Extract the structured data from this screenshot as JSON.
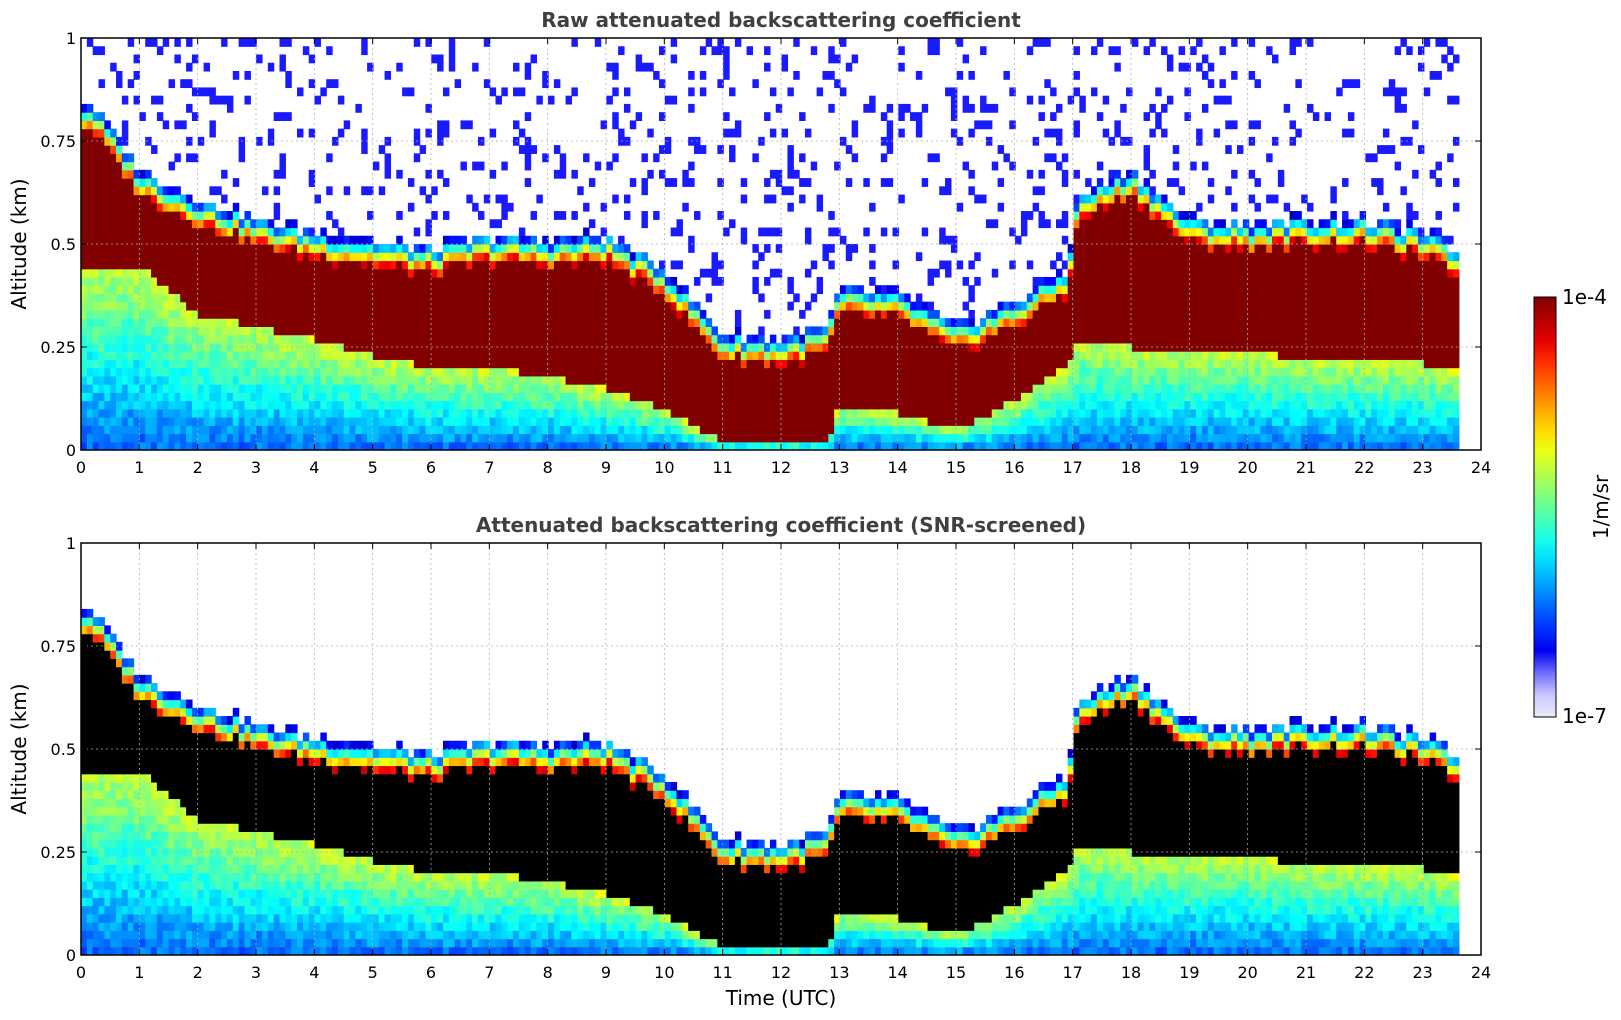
{
  "chart_data": [
    {
      "type": "heatmap",
      "title": "Raw attenuated backscattering coefficient",
      "xlabel": "",
      "ylabel": "Altitude (km)",
      "xlim": [
        0,
        24
      ],
      "ylim": [
        0,
        1
      ],
      "xticks": [
        "0",
        "1",
        "2",
        "3",
        "4",
        "5",
        "6",
        "7",
        "8",
        "9",
        "10",
        "11",
        "12",
        "13",
        "14",
        "15",
        "16",
        "17",
        "18",
        "19",
        "20",
        "21",
        "22",
        "23",
        "24"
      ],
      "yticks": [
        "0",
        "0.25",
        "0.5",
        "0.75",
        "1"
      ],
      "grid": true,
      "colorscale": "jet",
      "layer_top_km": [
        {
          "t": 0.2,
          "h": 0.78
        },
        {
          "t": 1,
          "h": 0.62
        },
        {
          "t": 2,
          "h": 0.55
        },
        {
          "t": 3,
          "h": 0.5
        },
        {
          "t": 4,
          "h": 0.47
        },
        {
          "t": 5,
          "h": 0.45
        },
        {
          "t": 6,
          "h": 0.43
        },
        {
          "t": 7,
          "h": 0.46
        },
        {
          "t": 8,
          "h": 0.45
        },
        {
          "t": 9,
          "h": 0.46
        },
        {
          "t": 10,
          "h": 0.38
        },
        {
          "t": 11,
          "h": 0.22
        },
        {
          "t": 12,
          "h": 0.21
        },
        {
          "t": 12.8,
          "h": 0.24
        },
        {
          "t": 13,
          "h": 0.33
        },
        {
          "t": 14,
          "h": 0.32
        },
        {
          "t": 15,
          "h": 0.24
        },
        {
          "t": 16,
          "h": 0.3
        },
        {
          "t": 16.9,
          "h": 0.38
        },
        {
          "t": 17.1,
          "h": 0.56
        },
        {
          "t": 18,
          "h": 0.62
        },
        {
          "t": 19,
          "h": 0.5
        },
        {
          "t": 20,
          "h": 0.49
        },
        {
          "t": 21,
          "h": 0.5
        },
        {
          "t": 22,
          "h": 0.5
        },
        {
          "t": 23,
          "h": 0.47
        },
        {
          "t": 23.6,
          "h": 0.43
        }
      ],
      "layer_base_km": [
        {
          "t": 0.2,
          "h": 0.45
        },
        {
          "t": 1,
          "h": 0.45
        },
        {
          "t": 2,
          "h": 0.33
        },
        {
          "t": 3,
          "h": 0.3
        },
        {
          "t": 4,
          "h": 0.27
        },
        {
          "t": 5,
          "h": 0.23
        },
        {
          "t": 6,
          "h": 0.2
        },
        {
          "t": 7,
          "h": 0.2
        },
        {
          "t": 8,
          "h": 0.18
        },
        {
          "t": 9,
          "h": 0.15
        },
        {
          "t": 10,
          "h": 0.1
        },
        {
          "t": 11,
          "h": 0.02
        },
        {
          "t": 12,
          "h": 0.02
        },
        {
          "t": 12.8,
          "h": 0.02
        },
        {
          "t": 13,
          "h": 0.11
        },
        {
          "t": 14,
          "h": 0.09
        },
        {
          "t": 15,
          "h": 0.05
        },
        {
          "t": 16,
          "h": 0.12
        },
        {
          "t": 16.9,
          "h": 0.21
        },
        {
          "t": 17.1,
          "h": 0.27
        },
        {
          "t": 18,
          "h": 0.25
        },
        {
          "t": 19,
          "h": 0.24
        },
        {
          "t": 20,
          "h": 0.24
        },
        {
          "t": 21,
          "h": 0.22
        },
        {
          "t": 22,
          "h": 0.22
        },
        {
          "t": 23,
          "h": 0.21
        },
        {
          "t": 23.6,
          "h": 0.19
        }
      ]
    },
    {
      "type": "heatmap",
      "title": "Attenuated backscattering coefficient (SNR-screened)",
      "xlabel": "Time (UTC)",
      "ylabel": "Altitude (km)",
      "xlim": [
        0,
        24
      ],
      "ylim": [
        0,
        1
      ],
      "xticks": [
        "0",
        "1",
        "2",
        "3",
        "4",
        "5",
        "6",
        "7",
        "8",
        "9",
        "10",
        "11",
        "12",
        "13",
        "14",
        "15",
        "16",
        "17",
        "18",
        "19",
        "20",
        "21",
        "22",
        "23",
        "24"
      ],
      "yticks": [
        "0",
        "0.25",
        "0.5",
        "0.75",
        "1"
      ],
      "grid": true,
      "colorscale": "jet",
      "saturated_color": "black",
      "layer_top_km": [
        {
          "t": 0.2,
          "h": 0.78
        },
        {
          "t": 1,
          "h": 0.62
        },
        {
          "t": 2,
          "h": 0.55
        },
        {
          "t": 3,
          "h": 0.5
        },
        {
          "t": 4,
          "h": 0.47
        },
        {
          "t": 5,
          "h": 0.45
        },
        {
          "t": 6,
          "h": 0.43
        },
        {
          "t": 7,
          "h": 0.46
        },
        {
          "t": 8,
          "h": 0.45
        },
        {
          "t": 9,
          "h": 0.46
        },
        {
          "t": 10,
          "h": 0.38
        },
        {
          "t": 11,
          "h": 0.22
        },
        {
          "t": 12,
          "h": 0.21
        },
        {
          "t": 12.8,
          "h": 0.24
        },
        {
          "t": 13,
          "h": 0.33
        },
        {
          "t": 14,
          "h": 0.32
        },
        {
          "t": 15,
          "h": 0.24
        },
        {
          "t": 16,
          "h": 0.3
        },
        {
          "t": 16.9,
          "h": 0.38
        },
        {
          "t": 17.1,
          "h": 0.56
        },
        {
          "t": 18,
          "h": 0.62
        },
        {
          "t": 19,
          "h": 0.5
        },
        {
          "t": 20,
          "h": 0.49
        },
        {
          "t": 21,
          "h": 0.5
        },
        {
          "t": 22,
          "h": 0.5
        },
        {
          "t": 23,
          "h": 0.47
        },
        {
          "t": 23.6,
          "h": 0.43
        }
      ]
    }
  ],
  "colorbar": {
    "label": "1/m/sr",
    "max_label": "1e-4",
    "min_label": "1e-7",
    "colors": [
      "#7f0000",
      "#b40000",
      "#e80000",
      "#ff3100",
      "#ff6a00",
      "#ffa200",
      "#ffd900",
      "#ebff14",
      "#b4ff4a",
      "#7dff7d",
      "#4affb4",
      "#14ffeb",
      "#00d8ff",
      "#00a0ff",
      "#0068ff",
      "#0030ff",
      "#0000f1",
      "#6c6cff",
      "#c8c8ff",
      "#ecebf8"
    ]
  }
}
